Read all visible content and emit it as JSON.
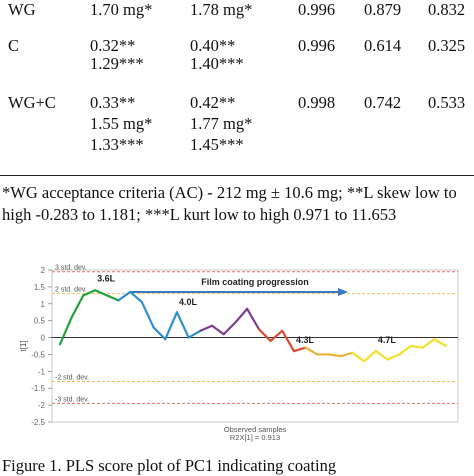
{
  "table": {
    "rows": [
      {
        "label": "WG",
        "col1": [
          "1.70 mg*"
        ],
        "col2": [
          "1.78 mg*"
        ],
        "col3": "0.996",
        "col4": "0.879",
        "col5": "0.832"
      },
      {
        "label": "C",
        "col1": [
          "0.32**",
          "1.29***"
        ],
        "col2": [
          "0.40**",
          "1.40***"
        ],
        "col3": "0.996",
        "col4": "0.614",
        "col5": "0.325"
      },
      {
        "label": "WG+C",
        "col1": [
          "0.33**",
          "1.55 mg*",
          "1.33***"
        ],
        "col2": [
          "0.42**",
          "1.77 mg*",
          "1.45***"
        ],
        "col3": "0.998",
        "col4": "0.742",
        "col5": "0.533"
      }
    ]
  },
  "footnote": "*WG acceptance criteria (AC) - 212 mg ± 10.6 mg; **L skew low to high -0.283 to 1.181; ***L kurt low to high 0.971 to 11.653",
  "caption": "Figure 1. PLS score plot of PC1 indicating coating",
  "chart_data": {
    "type": "line",
    "ylabel": "t[1]",
    "xlabel": "Observed samples",
    "x_note": "R2X[1] = 0.913",
    "ylim": [
      -2.5,
      2
    ],
    "yticks": [
      "2",
      "1.5",
      "1",
      "0.5",
      "0",
      "-0.5",
      "-1",
      "-1.5",
      "-2",
      "-2.5"
    ],
    "reference_lines": [
      {
        "label": "3 std. dev.",
        "value": 1.95,
        "color": "#e8706f"
      },
      {
        "label": "2 std. dev.",
        "value": 1.3,
        "color": "#f0c060"
      },
      {
        "label": "-2 std. dev.",
        "value": -1.3,
        "color": "#f0c060"
      },
      {
        "label": "-3 std. dev.",
        "value": -1.95,
        "color": "#e8706f"
      }
    ],
    "arrow_label": "Film coating progression",
    "annotations": [
      "3.6L",
      "4.0L",
      "4.3L",
      "4.7L"
    ],
    "series": [
      {
        "values": [
          -0.2,
          0.6,
          1.25,
          1.4,
          1.25,
          1.1,
          1.35,
          1.05,
          0.3,
          -0.05,
          0.75,
          0.0,
          0.2,
          0.35,
          0.1,
          0.45,
          0.85,
          0.25,
          -0.1,
          0.2,
          -0.4,
          -0.3,
          -0.5,
          -0.5,
          -0.55,
          -0.45,
          -0.7,
          -0.4,
          -0.65,
          -0.5,
          -0.25,
          -0.3,
          -0.05,
          -0.25
        ],
        "colors": [
          "#22a33b",
          "#2f8fcc",
          "#7f3f8f",
          "#d84b32",
          "#e8b23a",
          "#f1e12f"
        ],
        "color_breaks": [
          0,
          5,
          12,
          17,
          21,
          25,
          34
        ]
      }
    ]
  }
}
